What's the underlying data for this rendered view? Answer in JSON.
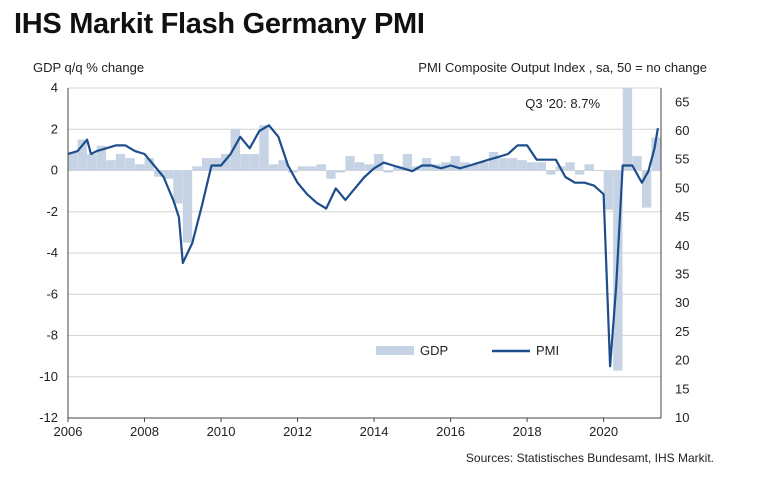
{
  "chart_data": {
    "type": "bar+line",
    "title": "IHS Markit Flash Germany PMI",
    "left_axis_label": "GDP q/q % change",
    "right_axis_label": "PMI Composite  Output Index  , sa, 50 = no change",
    "source": "Sources: Statistisches Bundesamt, IHS Markit.",
    "annotation": "Q3 '20: 8.7%",
    "x_ticks": [
      "2006",
      "2008",
      "2010",
      "2012",
      "2014",
      "2016",
      "2018",
      "2020"
    ],
    "x_range": [
      2006,
      2021.5
    ],
    "y_left_ticks": [
      "4",
      "2",
      "0",
      "-2",
      "-4",
      "-6",
      "-8",
      "-10",
      "-12"
    ],
    "y_left_range": [
      -12,
      4
    ],
    "y_right_ticks": [
      "65",
      "60",
      "55",
      "50",
      "45",
      "40",
      "35",
      "30",
      "25",
      "20",
      "15",
      "10"
    ],
    "y_right_range": [
      10,
      67.5
    ],
    "grid": "horizontal",
    "legend": {
      "position": "bottom-right",
      "items": [
        "GDP",
        "PMI"
      ]
    },
    "colors": {
      "gdp_bars": "#c5d3e4",
      "pmi_line": "#1d4e8b",
      "grid": "#d4d4d4"
    },
    "series": [
      {
        "name": "GDP",
        "kind": "bar",
        "x": [
          2006.0,
          2006.25,
          2006.5,
          2006.75,
          2007.0,
          2007.25,
          2007.5,
          2007.75,
          2008.0,
          2008.25,
          2008.5,
          2008.75,
          2009.0,
          2009.25,
          2009.5,
          2009.75,
          2010.0,
          2010.25,
          2010.5,
          2010.75,
          2011.0,
          2011.25,
          2011.5,
          2011.75,
          2012.0,
          2012.25,
          2012.5,
          2012.75,
          2013.0,
          2013.25,
          2013.5,
          2013.75,
          2014.0,
          2014.25,
          2014.5,
          2014.75,
          2015.0,
          2015.25,
          2015.5,
          2015.75,
          2016.0,
          2016.25,
          2016.5,
          2016.75,
          2017.0,
          2017.25,
          2017.5,
          2017.75,
          2018.0,
          2018.25,
          2018.5,
          2018.75,
          2019.0,
          2019.25,
          2019.5,
          2019.75,
          2020.0,
          2020.25,
          2020.5,
          2020.75,
          2021.0,
          2021.25
        ],
        "values": [
          0.9,
          1.5,
          0.8,
          1.2,
          0.5,
          0.8,
          0.6,
          0.3,
          0.6,
          -0.3,
          -0.4,
          -1.6,
          -3.5,
          0.2,
          0.6,
          0.6,
          0.8,
          2.0,
          0.8,
          0.8,
          2.2,
          0.3,
          0.5,
          -0.1,
          0.2,
          0.2,
          0.3,
          -0.4,
          -0.1,
          0.7,
          0.4,
          0.3,
          0.8,
          -0.1,
          0.2,
          0.8,
          0.2,
          0.6,
          0.3,
          0.4,
          0.7,
          0.4,
          0.3,
          0.4,
          0.9,
          0.6,
          0.6,
          0.5,
          0.4,
          0.4,
          -0.2,
          0.2,
          0.4,
          -0.2,
          0.3,
          0.0,
          -1.9,
          -9.7,
          8.7,
          0.7,
          -1.8,
          1.6
        ]
      },
      {
        "name": "PMI",
        "kind": "line",
        "x": [
          2006.0,
          2006.25,
          2006.5,
          2006.6,
          2006.75,
          2007.0,
          2007.25,
          2007.5,
          2007.75,
          2008.0,
          2008.25,
          2008.5,
          2008.75,
          2008.9,
          2009.0,
          2009.25,
          2009.5,
          2009.75,
          2010.0,
          2010.25,
          2010.5,
          2010.75,
          2011.0,
          2011.25,
          2011.5,
          2011.75,
          2012.0,
          2012.25,
          2012.5,
          2012.75,
          2013.0,
          2013.25,
          2013.5,
          2013.75,
          2014.0,
          2014.25,
          2014.5,
          2014.75,
          2015.0,
          2015.25,
          2015.5,
          2015.75,
          2016.0,
          2016.25,
          2016.5,
          2016.75,
          2017.0,
          2017.25,
          2017.5,
          2017.75,
          2018.0,
          2018.25,
          2018.5,
          2018.75,
          2019.0,
          2019.25,
          2019.5,
          2019.75,
          2020.0,
          2020.17,
          2020.33,
          2020.5,
          2020.75,
          2021.0,
          2021.17,
          2021.33,
          2021.42
        ],
        "values": [
          56,
          56.5,
          58.5,
          56,
          56.5,
          57,
          57.5,
          57.5,
          56.5,
          56,
          54,
          52,
          48,
          45,
          37,
          40.5,
          47,
          54,
          54,
          56,
          59,
          57,
          60,
          61,
          59,
          54,
          51,
          49,
          47.5,
          46.5,
          50,
          48,
          50,
          52,
          53.5,
          54.5,
          54,
          53.5,
          53,
          54,
          54,
          53.5,
          54,
          53.5,
          54,
          54.5,
          55,
          55.5,
          56,
          57.5,
          57.5,
          55,
          55,
          55,
          52,
          51,
          51,
          50.5,
          49,
          19,
          33,
          54,
          54,
          51,
          53,
          57,
          60.5
        ]
      }
    ]
  }
}
